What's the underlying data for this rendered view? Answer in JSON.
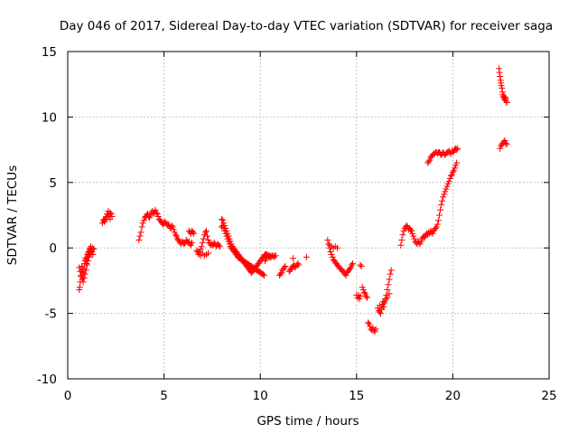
{
  "chart_data": {
    "type": "scatter",
    "title": "Day 046 of 2017, Sidereal Day-to-day VTEC variation (SDTVAR) for receiver saga",
    "xlabel": "GPS time / hours",
    "ylabel": "SDTVAR / TECUs",
    "xlim": [
      0,
      25
    ],
    "ylim": [
      -10,
      15
    ],
    "xticks": [
      0,
      5,
      10,
      15,
      20,
      25
    ],
    "yticks": [
      -10,
      -5,
      0,
      5,
      10,
      15
    ],
    "xtick_labels": [
      "0",
      "5",
      "10",
      "15",
      "20",
      "25"
    ],
    "ytick_labels": [
      "-10",
      "-5",
      "0",
      "5",
      "10",
      "15"
    ],
    "grid": true,
    "marker": "+",
    "color": "#ff0000",
    "series": [
      {
        "name": "SDTVAR",
        "x": [
          0.6,
          0.62,
          0.65,
          0.68,
          0.7,
          0.73,
          0.75,
          0.78,
          0.8,
          0.82,
          0.85,
          0.88,
          0.9,
          0.92,
          0.95,
          0.98,
          1.0,
          1.03,
          1.05,
          1.08,
          1.1,
          1.13,
          1.15,
          1.18,
          1.2,
          1.25,
          1.3,
          0.6,
          0.65,
          0.7,
          0.75,
          0.8,
          0.85,
          0.9,
          0.95,
          1.0,
          1.05,
          1.1,
          1.15,
          1.2,
          1.25,
          1.3,
          1.35,
          1.8,
          1.85,
          1.9,
          1.95,
          2.0,
          2.05,
          2.1,
          2.15,
          2.2,
          2.25,
          2.3,
          1.9,
          2.0,
          2.1,
          2.2,
          3.7,
          3.75,
          3.8,
          3.85,
          3.9,
          3.95,
          4.0,
          4.05,
          4.1,
          4.15,
          4.2,
          4.25,
          4.3,
          4.35,
          4.4,
          4.45,
          4.5,
          4.55,
          4.6,
          4.65,
          4.7,
          4.75,
          4.8,
          4.85,
          4.9,
          4.95,
          5.0,
          5.05,
          5.1,
          5.15,
          5.2,
          5.25,
          5.3,
          5.35,
          5.4,
          5.45,
          5.5,
          5.55,
          5.6,
          5.65,
          5.7,
          5.75,
          5.8,
          5.85,
          5.9,
          5.95,
          6.0,
          6.05,
          6.1,
          6.15,
          6.2,
          6.25,
          6.3,
          6.35,
          6.4,
          6.45,
          6.3,
          6.35,
          6.4,
          6.45,
          6.5,
          6.55,
          6.7,
          6.75,
          6.8,
          6.85,
          6.9,
          6.95,
          7.0,
          7.05,
          7.1,
          7.15,
          7.2,
          7.25,
          7.3,
          7.35,
          7.4,
          7.45,
          7.5,
          7.55,
          7.6,
          7.65,
          7.7,
          7.75,
          7.8,
          7.85,
          7.9,
          6.8,
          6.9,
          7.0,
          7.1,
          7.2,
          7.3,
          8.0,
          8.05,
          8.1,
          8.15,
          8.2,
          8.25,
          8.3,
          8.35,
          8.4,
          8.45,
          8.5,
          8.55,
          8.6,
          8.65,
          8.7,
          8.75,
          8.8,
          8.85,
          8.9,
          8.95,
          9.0,
          9.05,
          9.1,
          9.15,
          9.2,
          9.25,
          9.3,
          9.35,
          9.4,
          9.45,
          9.5,
          9.55,
          9.6,
          9.65,
          9.7,
          9.75,
          9.8,
          9.85,
          9.9,
          9.95,
          10.0,
          10.05,
          10.1,
          10.15,
          10.2,
          10.25,
          10.3,
          10.35,
          10.4,
          10.45,
          10.5,
          10.55,
          10.6,
          10.65,
          10.7,
          10.75,
          10.8,
          8.0,
          8.05,
          8.1,
          8.15,
          8.2,
          8.25,
          8.3,
          8.35,
          8.4,
          8.45,
          8.5,
          8.55,
          8.6,
          8.65,
          8.7,
          8.75,
          8.8,
          8.85,
          8.9,
          8.95,
          9.0,
          9.05,
          9.1,
          9.15,
          9.2,
          9.25,
          9.3,
          9.35,
          9.4,
          9.45,
          9.5,
          9.55,
          9.6,
          9.65,
          9.7,
          9.75,
          9.8,
          9.85,
          9.9,
          9.95,
          10.0,
          10.05,
          10.1,
          10.15,
          10.2,
          10.25,
          10.3,
          10.35,
          10.4,
          10.45,
          10.5,
          11.0,
          11.05,
          11.1,
          11.15,
          11.2,
          11.25,
          11.3,
          11.5,
          11.55,
          11.6,
          11.65,
          11.7,
          11.75,
          11.8,
          11.85,
          11.9,
          11.95,
          12.0,
          11.7,
          12.4,
          13.5,
          13.55,
          13.6,
          13.65,
          13.7,
          13.75,
          13.8,
          13.85,
          13.9,
          13.95,
          14.0,
          14.05,
          14.1,
          14.15,
          14.2,
          14.25,
          14.3,
          14.35,
          14.4,
          14.45,
          14.5,
          14.55,
          14.6,
          14.65,
          14.7,
          14.75,
          14.8,
          13.6,
          13.7,
          13.8,
          13.9,
          14.0,
          15.0,
          15.05,
          15.1,
          15.15,
          15.2,
          15.3,
          15.35,
          15.4,
          15.45,
          15.5,
          15.55,
          15.6,
          15.65,
          15.7,
          15.75,
          15.8,
          15.85,
          15.9,
          15.95,
          16.0,
          15.2,
          15.25,
          16.1,
          16.15,
          16.2,
          16.25,
          16.3,
          16.35,
          16.4,
          16.45,
          16.5,
          16.55,
          16.6,
          16.65,
          16.7,
          16.75,
          16.8,
          16.2,
          16.3,
          16.4,
          16.5,
          16.6,
          16.7,
          17.3,
          17.35,
          17.4,
          17.45,
          17.5,
          17.55,
          17.6,
          17.65,
          17.7,
          17.75,
          17.8,
          17.85,
          17.9,
          17.95,
          18.0,
          18.05,
          18.1,
          18.15,
          18.2,
          18.25,
          18.3,
          18.35,
          18.4,
          18.45,
          18.5,
          18.55,
          18.6,
          18.65,
          18.7,
          18.75,
          18.8,
          18.85,
          18.9,
          18.95,
          19.0,
          19.05,
          19.1,
          19.15,
          19.2,
          19.25,
          19.3,
          19.35,
          19.4,
          19.45,
          19.5,
          19.55,
          19.6,
          19.65,
          19.7,
          19.75,
          19.8,
          19.85,
          19.9,
          19.95,
          20.0,
          20.05,
          20.1,
          20.15,
          20.2,
          18.7,
          18.75,
          18.8,
          18.85,
          18.9,
          18.95,
          19.0,
          19.05,
          19.1,
          19.15,
          19.2,
          19.25,
          19.3,
          19.35,
          19.4,
          19.45,
          19.5,
          19.55,
          19.6,
          19.65,
          19.7,
          19.75,
          19.8,
          19.85,
          19.9,
          19.95,
          20.0,
          20.05,
          20.1,
          20.15,
          20.2,
          20.25,
          22.4,
          22.42,
          22.45,
          22.48,
          22.5,
          22.52,
          22.55,
          22.58,
          22.6,
          22.62,
          22.65,
          22.68,
          22.7,
          22.72,
          22.75,
          22.78,
          22.8,
          22.45,
          22.5,
          22.55,
          22.6,
          22.65,
          22.7,
          22.75,
          22.8
        ],
        "y": [
          -3.2,
          -3.0,
          -2.6,
          -2.2,
          -1.8,
          -1.4,
          -1.5,
          -1.9,
          -2.3,
          -2.0,
          -1.6,
          -1.2,
          -1.0,
          -0.8,
          -0.9,
          -1.2,
          -0.7,
          -0.5,
          -0.4,
          -0.6,
          -0.3,
          -0.2,
          -0.1,
          0.0,
          0.1,
          -0.3,
          -0.5,
          -1.5,
          -1.8,
          -2.1,
          -2.4,
          -2.6,
          -2.3,
          -2.0,
          -1.7,
          -1.3,
          -1.0,
          -0.7,
          -0.5,
          -0.4,
          -0.2,
          0.0,
          -0.1,
          1.9,
          2.1,
          2.2,
          2.1,
          2.4,
          2.6,
          2.8,
          2.5,
          2.7,
          2.6,
          2.4,
          2.0,
          2.3,
          2.5,
          2.2,
          0.6,
          0.9,
          1.2,
          1.6,
          1.9,
          2.1,
          2.3,
          2.4,
          2.5,
          2.6,
          2.4,
          2.3,
          2.5,
          2.7,
          2.8,
          2.6,
          2.7,
          2.9,
          2.7,
          2.6,
          2.4,
          2.2,
          2.1,
          2.0,
          1.9,
          1.8,
          1.9,
          2.0,
          1.9,
          1.8,
          1.7,
          1.8,
          1.6,
          1.5,
          1.7,
          1.6,
          1.4,
          1.2,
          1.0,
          0.9,
          0.7,
          0.6,
          0.5,
          0.4,
          0.3,
          0.5,
          0.4,
          0.3,
          0.4,
          0.6,
          0.5,
          0.4,
          0.5,
          0.3,
          0.2,
          0.4,
          1.3,
          1.2,
          1.1,
          1.3,
          1.2,
          1.1,
          -0.2,
          -0.3,
          -0.4,
          -0.3,
          -0.1,
          0.1,
          0.4,
          0.7,
          1.0,
          1.2,
          1.3,
          0.9,
          0.6,
          0.4,
          0.3,
          0.2,
          0.3,
          0.2,
          0.4,
          0.3,
          0.1,
          0.2,
          0.3,
          0.2,
          0.1,
          -0.5,
          -0.6,
          -0.4,
          -0.6,
          -0.5,
          -0.4,
          2.2,
          2.1,
          1.9,
          1.7,
          1.5,
          1.3,
          1.1,
          0.9,
          0.7,
          0.5,
          0.3,
          0.1,
          0.0,
          -0.1,
          -0.2,
          -0.3,
          -0.4,
          -0.5,
          -0.6,
          -0.7,
          -0.8,
          -0.9,
          -1.0,
          -1.1,
          -1.2,
          -1.3,
          -1.4,
          -1.5,
          -1.6,
          -1.7,
          -1.8,
          -1.9,
          -1.8,
          -1.7,
          -1.6,
          -1.5,
          -1.4,
          -1.3,
          -1.2,
          -1.1,
          -1.0,
          -0.9,
          -0.8,
          -0.7,
          -0.6,
          -0.5,
          -0.5,
          -0.5,
          -0.6,
          -0.6,
          -0.7,
          -0.7,
          -0.6,
          -0.6,
          -0.7,
          -0.6,
          -0.6,
          1.6,
          1.7,
          1.5,
          1.3,
          1.1,
          0.9,
          0.7,
          0.5,
          0.3,
          0.1,
          0.0,
          -0.1,
          -0.2,
          -0.3,
          -0.4,
          -0.5,
          -0.6,
          -0.7,
          -0.8,
          -0.8,
          -0.9,
          -0.9,
          -1.0,
          -1.0,
          -1.1,
          -1.1,
          -1.2,
          -1.2,
          -1.3,
          -1.3,
          -1.4,
          -1.4,
          -1.5,
          -1.5,
          -1.6,
          -1.6,
          -1.7,
          -1.7,
          -1.8,
          -1.8,
          -1.9,
          -1.9,
          -2.0,
          -2.0,
          -2.1,
          -1.0,
          -0.8,
          -0.7,
          -0.6,
          -0.7,
          -0.6,
          -2.1,
          -2.0,
          -1.9,
          -1.7,
          -1.6,
          -1.5,
          -1.4,
          -1.8,
          -1.7,
          -1.6,
          -1.5,
          -1.4,
          -1.3,
          -1.5,
          -1.4,
          -1.3,
          -1.2,
          -1.3,
          -0.8,
          -0.7,
          0.6,
          0.3,
          0.0,
          -0.3,
          -0.5,
          -0.7,
          -0.9,
          -1.0,
          -1.1,
          -1.2,
          -1.3,
          -1.4,
          -1.5,
          -1.6,
          -1.6,
          -1.7,
          -1.8,
          -1.9,
          -2.0,
          -2.1,
          -1.9,
          -1.8,
          -1.7,
          -1.6,
          -1.5,
          -1.3,
          -1.2,
          0.2,
          0.1,
          0.0,
          0.1,
          0.0,
          -3.6,
          -3.8,
          -3.6,
          -3.9,
          -3.7,
          -3.0,
          -3.2,
          -3.4,
          -3.5,
          -3.7,
          -3.8,
          -5.7,
          -5.8,
          -6.0,
          -6.2,
          -6.3,
          -6.1,
          -6.3,
          -6.4,
          -6.2,
          -1.3,
          -1.4,
          -4.6,
          -4.8,
          -4.9,
          -5.0,
          -4.7,
          -4.3,
          -4.5,
          -4.2,
          -4.0,
          -3.6,
          -3.2,
          -2.8,
          -2.4,
          -2.0,
          -1.7,
          -4.4,
          -4.6,
          -4.1,
          -3.9,
          -3.8,
          -3.5,
          0.2,
          0.6,
          1.0,
          1.3,
          1.5,
          1.6,
          1.7,
          1.6,
          1.4,
          1.5,
          1.4,
          1.3,
          1.1,
          0.9,
          0.7,
          0.5,
          0.4,
          0.3,
          0.5,
          0.4,
          0.3,
          0.5,
          0.7,
          0.8,
          0.9,
          0.8,
          1.0,
          1.1,
          1.0,
          1.2,
          1.1,
          1.3,
          1.2,
          1.1,
          1.3,
          1.4,
          1.5,
          1.6,
          1.8,
          2.1,
          2.5,
          2.9,
          3.3,
          3.6,
          3.9,
          4.1,
          4.3,
          4.5,
          4.7,
          4.9,
          5.1,
          5.3,
          5.5,
          5.6,
          5.8,
          5.9,
          6.1,
          6.3,
          6.5,
          6.5,
          6.6,
          6.7,
          6.9,
          7.0,
          7.1,
          7.2,
          7.2,
          7.3,
          7.3,
          7.2,
          7.3,
          7.3,
          7.2,
          7.1,
          7.2,
          7.3,
          7.2,
          7.1,
          7.2,
          7.3,
          7.3,
          7.4,
          7.3,
          7.2,
          7.4,
          7.3,
          7.4,
          7.5,
          7.6,
          7.5,
          7.6,
          13.7,
          13.4,
          13.1,
          12.8,
          12.6,
          12.4,
          12.2,
          11.9,
          11.7,
          11.5,
          11.6,
          11.4,
          11.3,
          11.5,
          11.4,
          11.2,
          11.1,
          7.6,
          7.8,
          7.9,
          8.0,
          8.1,
          8.2,
          8.0,
          7.9
        ]
      }
    ]
  }
}
